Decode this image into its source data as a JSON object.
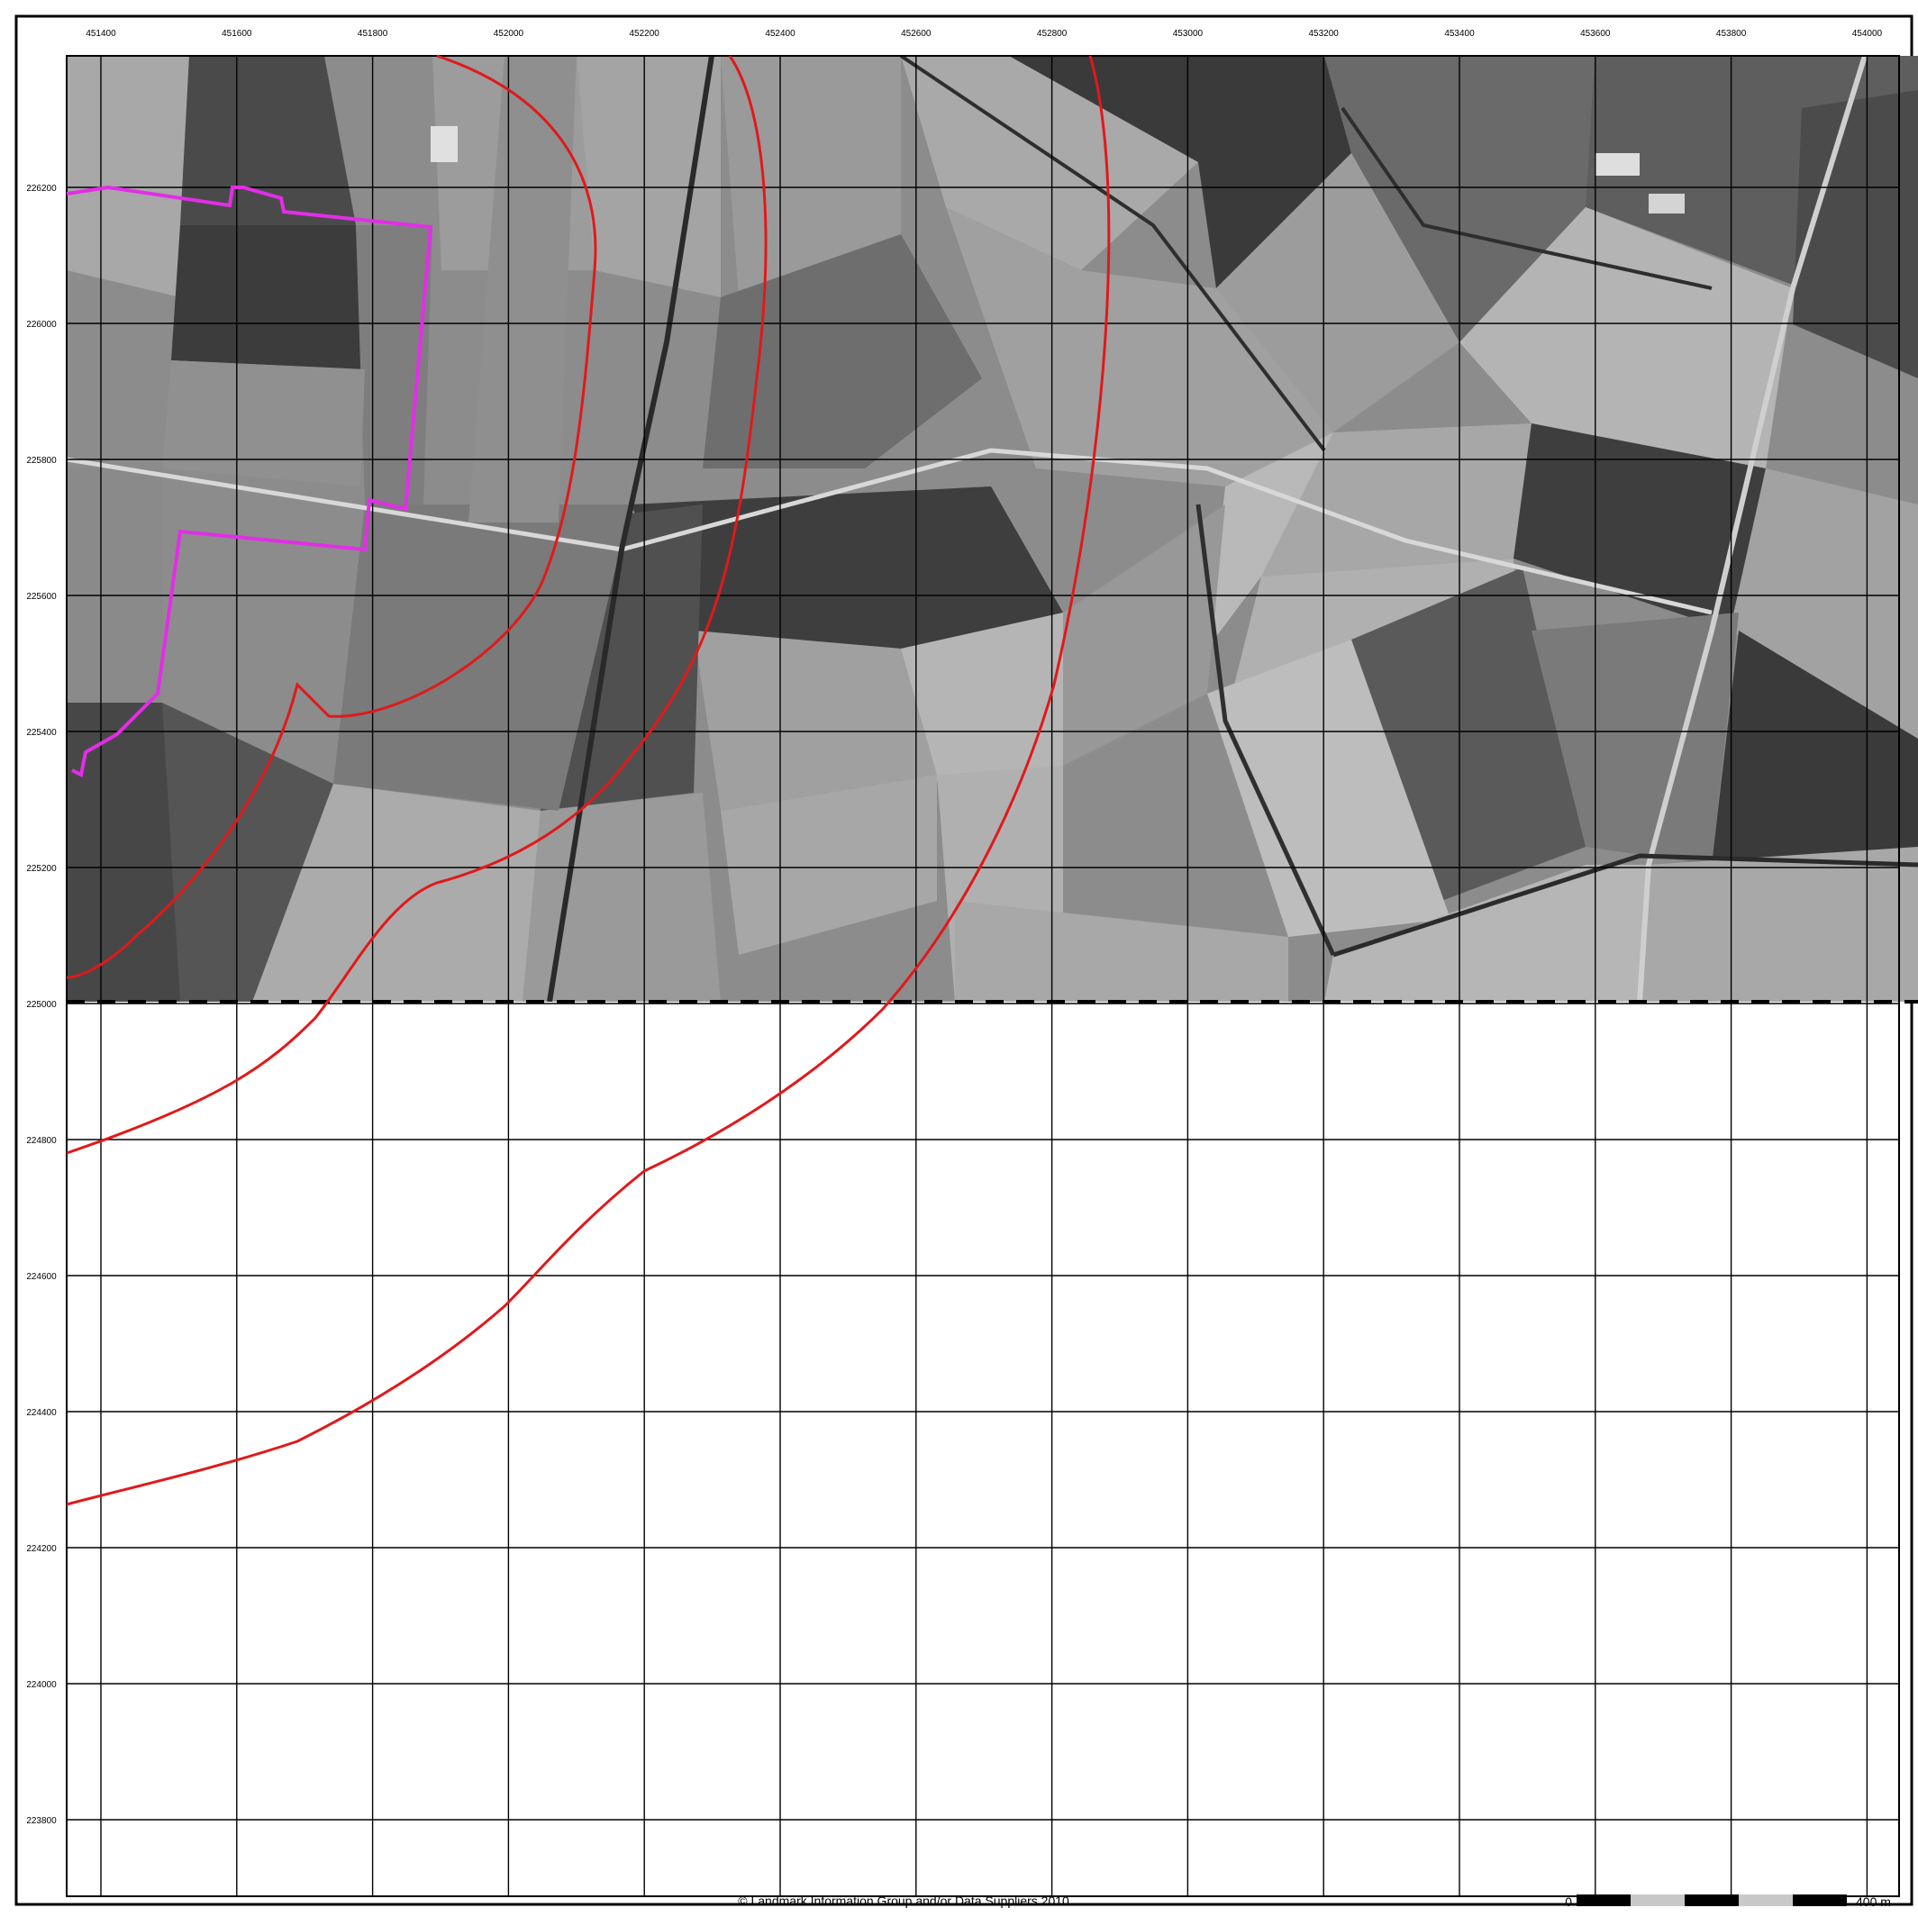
{
  "map": {
    "easting_labels": [
      "451400",
      "451600",
      "451800",
      "452000",
      "452200",
      "452400",
      "452600",
      "452800",
      "453000",
      "453200",
      "453400",
      "453600",
      "453800",
      "454000"
    ],
    "northing_labels": [
      "226200",
      "226000",
      "225800",
      "225600",
      "225400",
      "225200",
      "225000",
      "224800",
      "224600",
      "224400",
      "224200",
      "224000",
      "223800"
    ],
    "copyright": "© Landmark Information Group and/or Data Suppliers 2010.",
    "scale_bar": {
      "start_label": "0",
      "end_label": "400 m"
    },
    "colors": {
      "buffer_line": "#e0191b",
      "site_boundary": "#e22ee6",
      "grid": "#000000",
      "photo_base": "#8a8a8a"
    }
  }
}
